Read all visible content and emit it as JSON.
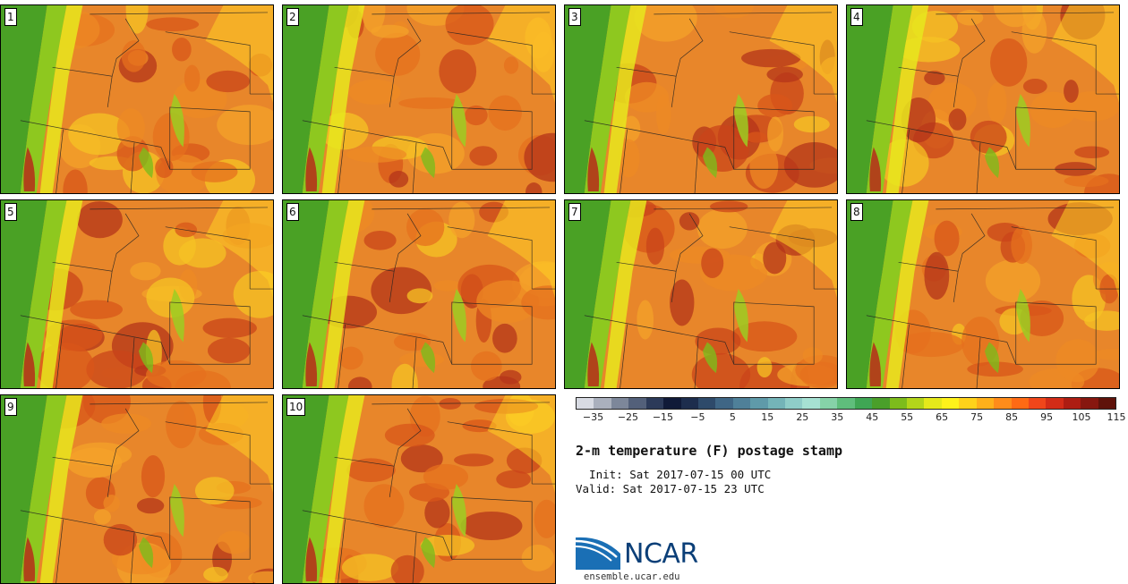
{
  "stamps": [
    {
      "label": "1"
    },
    {
      "label": "2"
    },
    {
      "label": "3"
    },
    {
      "label": "4"
    },
    {
      "label": "5"
    },
    {
      "label": "6"
    },
    {
      "label": "7"
    },
    {
      "label": "8"
    },
    {
      "label": "9"
    },
    {
      "label": "10"
    }
  ],
  "colorbar": {
    "colors": [
      "#d8dbe3",
      "#aab0bd",
      "#7d879a",
      "#53607a",
      "#2c3a59",
      "#101a38",
      "#1d2d4d",
      "#2e4a6a",
      "#3f6685",
      "#4f8099",
      "#5f9aa9",
      "#74b4b8",
      "#8fcdc8",
      "#a6e1d3",
      "#86d2a8",
      "#5fbe7c",
      "#3fa654",
      "#4a9f2a",
      "#7dbc1c",
      "#b3d51a",
      "#e5e91a",
      "#fff21a",
      "#ffd21a",
      "#ffb01a",
      "#ff8c1a",
      "#ff6a14",
      "#f0461a",
      "#d32c17",
      "#ad1d12",
      "#87170f",
      "#5f120a"
    ],
    "ticks": [
      "−35",
      "−25",
      "−15",
      "−5",
      "5",
      "15",
      "25",
      "35",
      "45",
      "55",
      "65",
      "75",
      "85",
      "95",
      "105",
      "115"
    ]
  },
  "title": "2-m temperature (F) postage stamp",
  "init_line": "  Init: Sat 2017-07-15 00 UTC",
  "valid_line": "Valid: Sat 2017-07-15 23 UTC",
  "logo": {
    "wordmark": "NCAR",
    "url": "ensemble.ucar.edu"
  }
}
